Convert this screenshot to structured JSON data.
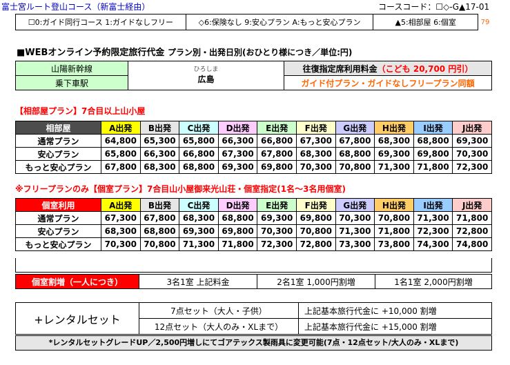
{
  "route_title": "富士宮ルート登山コース（新富士経由）",
  "course_code": "コースコード：☐◇-G▲17-01",
  "legend": {
    "guide": "☐0:ガイド同行コース  1:ガイドなしフリー",
    "insurance": "◇6:保険なし 9:安心プラン A:もっと安心プラン",
    "room": "▲5:相部屋 6:個室",
    "number": "79"
  },
  "price_title": "■WEBオンライン予約限定旅行代金",
  "price_subtitle": "プラン別・出発日別(おひとり様につき／単位:円)",
  "header": {
    "line": "山陽新幹線",
    "station": "乗下車駅",
    "city_ruby": "ひろしま",
    "city": "広島",
    "fare_label": "往復指定席利用料金",
    "child_fare": "（こども 20,700 円引）",
    "plan_note": "ガイド付プラン・ガイドなしフリープラン同額"
  },
  "section1_title": "【相部屋プラン】7合目以上山小屋",
  "section2_title": "※フリープランのみ【個室プラン】7合目山小屋御来光山荘・個室指定(1名～3名用個室)",
  "departures": [
    {
      "label": "A出発",
      "color": "#ffff00"
    },
    {
      "label": "B出発",
      "color": "#e6e6e6"
    },
    {
      "label": "C出発",
      "color": "#ccffff"
    },
    {
      "label": "D出発",
      "color": "#ffccff"
    },
    {
      "label": "E出発",
      "color": "#ccffcc"
    },
    {
      "label": "F出発",
      "color": "#ffffcc"
    },
    {
      "label": "G出発",
      "color": "#ccccff"
    },
    {
      "label": "H出発",
      "color": "#ffcc66"
    },
    {
      "label": "I出発",
      "color": "#99ccff"
    },
    {
      "label": "J出発",
      "color": "#ffcccc"
    }
  ],
  "shared": {
    "header": "相部屋",
    "rows": [
      {
        "plan": "通常プラン",
        "prices": [
          "64,800",
          "65,300",
          "65,800",
          "66,300",
          "66,800",
          "67,300",
          "67,800",
          "68,300",
          "68,800",
          "69,300"
        ]
      },
      {
        "plan": "安心プラン",
        "prices": [
          "65,800",
          "66,300",
          "66,800",
          "67,300",
          "67,800",
          "68,300",
          "68,800",
          "69,300",
          "69,800",
          "70,300"
        ]
      },
      {
        "plan": "もっと安心プラン",
        "prices": [
          "67,800",
          "68,300",
          "68,800",
          "69,300",
          "69,800",
          "70,300",
          "70,800",
          "71,300",
          "71,800",
          "72,300"
        ]
      }
    ]
  },
  "private": {
    "header": "個室利用",
    "rows": [
      {
        "plan": "通常プラン",
        "prices": [
          "67,300",
          "67,800",
          "68,300",
          "68,800",
          "69,300",
          "69,800",
          "70,300",
          "70,800",
          "71,300",
          "71,800"
        ]
      },
      {
        "plan": "安心プラン",
        "prices": [
          "68,300",
          "68,800",
          "69,300",
          "69,800",
          "70,300",
          "70,800",
          "71,300",
          "71,800",
          "72,300",
          "72,800"
        ]
      },
      {
        "plan": "もっと安心プラン",
        "prices": [
          "70,300",
          "70,800",
          "71,300",
          "71,800",
          "72,300",
          "72,800",
          "73,300",
          "73,800",
          "74,300",
          "74,800"
        ]
      }
    ]
  },
  "surcharge": {
    "label": "個室割増（一人につき）",
    "three": "3名1室 上記料金",
    "two": "2名1室 1,000円割増",
    "one": "1名1室 2,000円割増"
  },
  "rental": {
    "label": "+レンタルセット",
    "set7": "7点セット（大人・子供）",
    "set7_price": "上記基本旅行代金に  +10,000  割増",
    "set12": "12点セット（大人のみ・XLまで）",
    "set12_price": "上記基本旅行代金に  +15,000  割増",
    "note": "*レンタルセットグレードUP／2,500円増しにてゴアテックス製雨具に変更可能(7点・12点セット/大人のみ・XLまで)"
  }
}
